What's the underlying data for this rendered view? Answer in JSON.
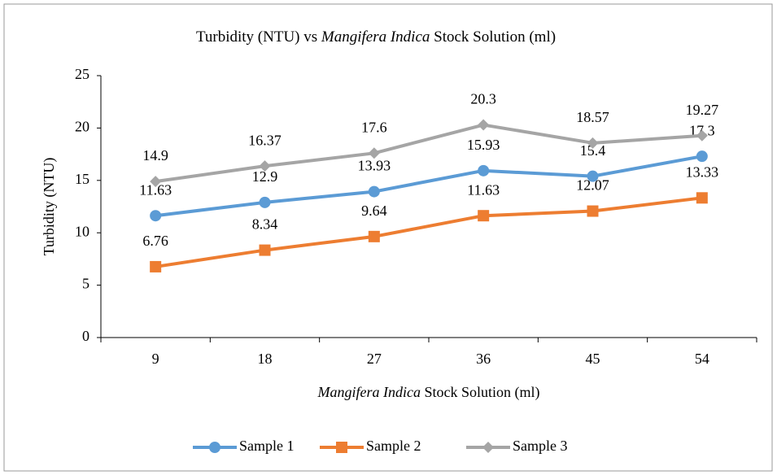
{
  "chart_data": {
    "type": "line",
    "title": [
      "Turbidity (NTU) vs",
      "Mangifera Indica",
      "Stock Solution (ml)"
    ],
    "x_label": [
      "Mangifera Indica",
      "Stock Solution (ml)"
    ],
    "y_label": "Turbidity (NTU)",
    "categories": [
      9,
      18,
      27,
      36,
      45,
      54
    ],
    "ylim": [
      0,
      25
    ],
    "yticks": [
      0,
      5,
      10,
      15,
      20,
      25
    ],
    "legend": "bottom",
    "series": [
      {
        "name": "Sample 1",
        "color": "#5b9bd5",
        "marker": "circle",
        "values": [
          11.63,
          12.9,
          13.93,
          15.93,
          15.4,
          17.3
        ]
      },
      {
        "name": "Sample 2",
        "color": "#ed7d31",
        "marker": "square",
        "values": [
          6.76,
          8.34,
          9.64,
          11.63,
          12.07,
          13.33
        ]
      },
      {
        "name": "Sample 3",
        "color": "#a5a5a5",
        "marker": "diamond",
        "values": [
          14.9,
          16.37,
          17.6,
          20.3,
          18.57,
          19.27
        ]
      }
    ]
  }
}
